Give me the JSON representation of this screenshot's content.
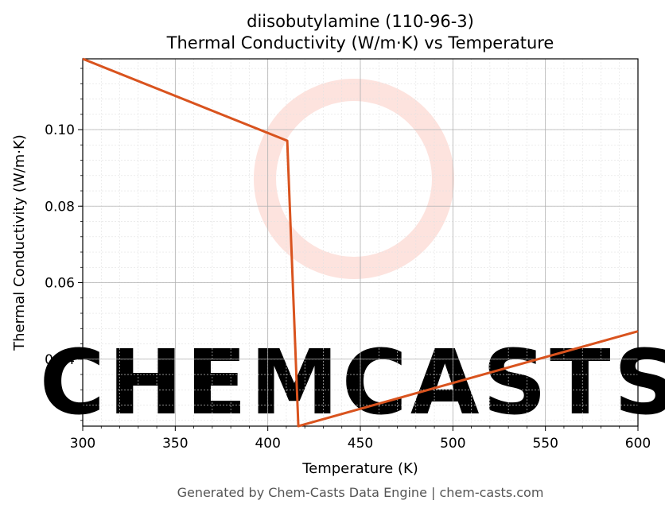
{
  "chart_data": {
    "type": "line",
    "title": "diisobutylamine (110-96-3)",
    "subtitle": "Thermal Conductivity (W/m·K) vs Temperature",
    "xlabel": "Temperature (K)",
    "ylabel": "Thermal Conductivity (W/m·K)",
    "xlim": [
      300,
      600
    ],
    "ylim": [
      0.0225,
      0.1185
    ],
    "xticks": [
      300,
      350,
      400,
      450,
      500,
      550,
      600
    ],
    "yticks": [
      0.04,
      0.06,
      0.08,
      0.1
    ],
    "ytick_labels": [
      "0.04",
      "0.06",
      "0.08",
      "0.10"
    ],
    "grid": true,
    "minor_grid": true,
    "series": [
      {
        "color": "#d9531e",
        "x": [
          300,
          410.5,
          416.5,
          600
        ],
        "y": [
          0.1185,
          0.0971,
          0.0225,
          0.0473
        ]
      }
    ]
  },
  "watermark": {
    "text": "CHEMCASTS",
    "color": "#fde0db"
  },
  "footer": "Generated by Chem-Casts Data Engine | chem-casts.com"
}
